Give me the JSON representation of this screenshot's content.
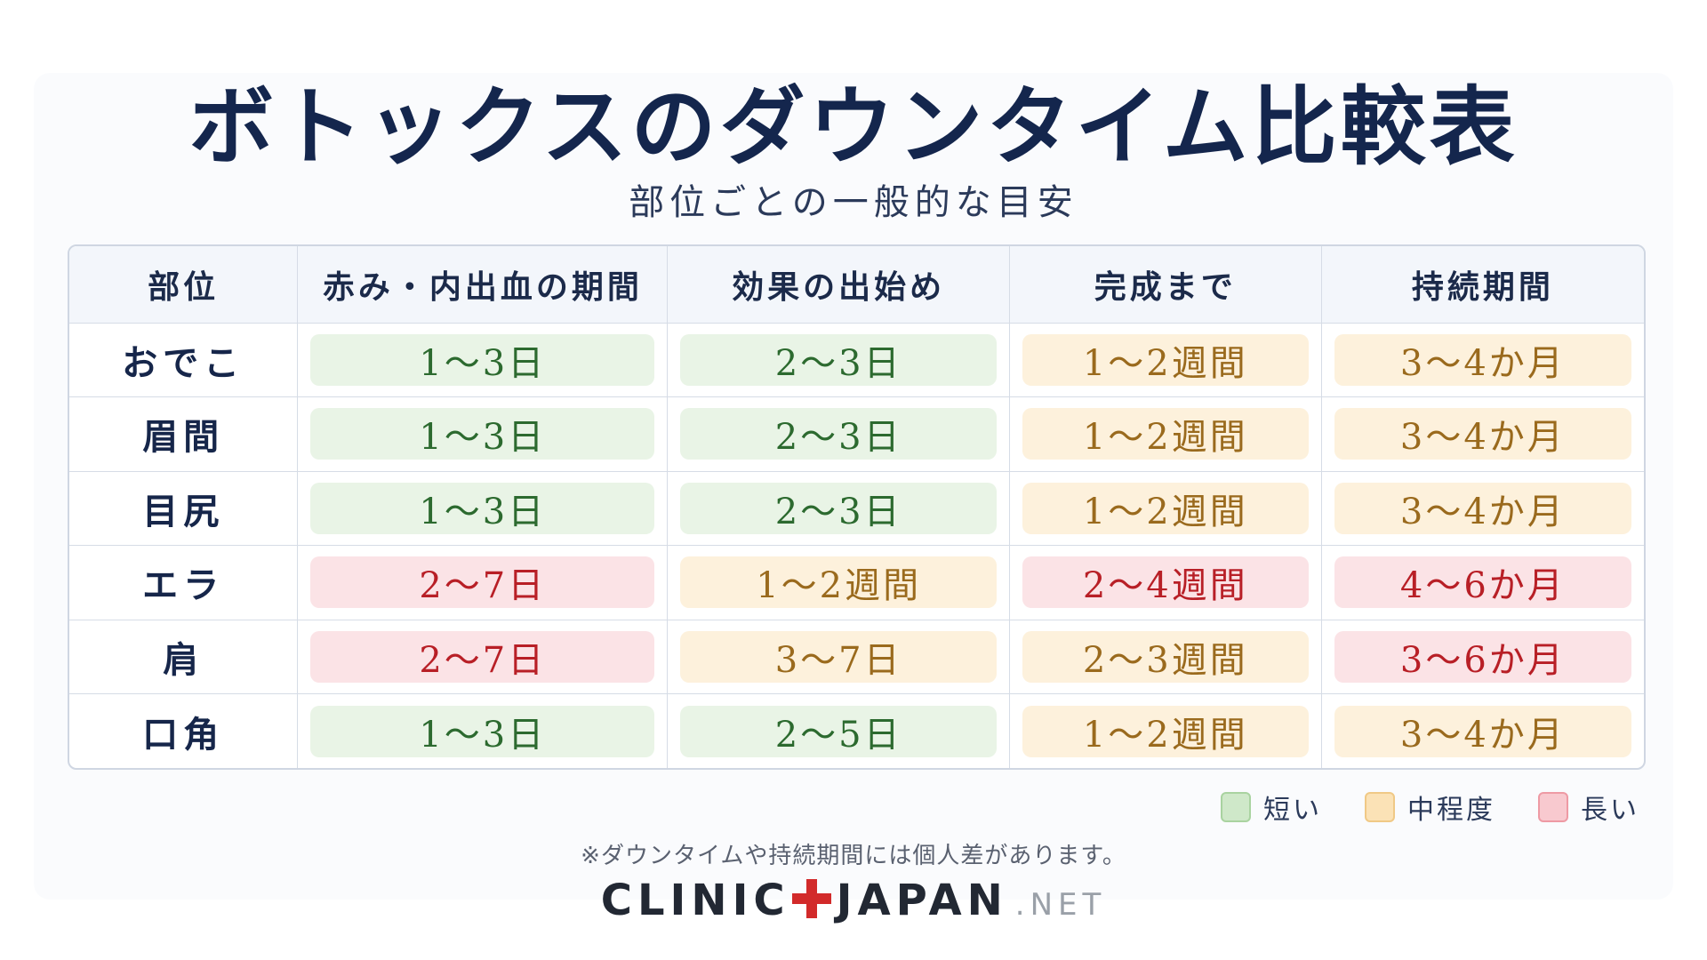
{
  "title": "ボトックスのダウンタイム比較表",
  "subtitle": "部位ごとの一般的な目安",
  "table": {
    "headers": [
      "部位",
      "赤み・内出血の期間",
      "効果の出始め",
      "完成まで",
      "持続期間"
    ],
    "rows": [
      {
        "part": "おでこ",
        "cells": [
          {
            "text": "1〜3日",
            "level": "short"
          },
          {
            "text": "2〜3日",
            "level": "short"
          },
          {
            "text": "1〜2週間",
            "level": "mid"
          },
          {
            "text": "3〜4か月",
            "level": "mid"
          }
        ]
      },
      {
        "part": "眉間",
        "cells": [
          {
            "text": "1〜3日",
            "level": "short"
          },
          {
            "text": "2〜3日",
            "level": "short"
          },
          {
            "text": "1〜2週間",
            "level": "mid"
          },
          {
            "text": "3〜4か月",
            "level": "mid"
          }
        ]
      },
      {
        "part": "目尻",
        "cells": [
          {
            "text": "1〜3日",
            "level": "short"
          },
          {
            "text": "2〜3日",
            "level": "short"
          },
          {
            "text": "1〜2週間",
            "level": "mid"
          },
          {
            "text": "3〜4か月",
            "level": "mid"
          }
        ]
      },
      {
        "part": "エラ",
        "cells": [
          {
            "text": "2〜7日",
            "level": "long"
          },
          {
            "text": "1〜2週間",
            "level": "mid"
          },
          {
            "text": "2〜4週間",
            "level": "long"
          },
          {
            "text": "4〜6か月",
            "level": "long"
          }
        ]
      },
      {
        "part": "肩",
        "cells": [
          {
            "text": "2〜7日",
            "level": "long"
          },
          {
            "text": "3〜7日",
            "level": "mid"
          },
          {
            "text": "2〜3週間",
            "level": "mid"
          },
          {
            "text": "3〜6か月",
            "level": "long"
          }
        ]
      },
      {
        "part": "口角",
        "cells": [
          {
            "text": "1〜3日",
            "level": "short"
          },
          {
            "text": "2〜5日",
            "level": "short"
          },
          {
            "text": "1〜2週間",
            "level": "mid"
          },
          {
            "text": "3〜4か月",
            "level": "mid"
          }
        ]
      }
    ]
  },
  "legend": {
    "short": "短い",
    "mid": "中程度",
    "long": "長い"
  },
  "colors": {
    "short_bg": "#e9f4e6",
    "short_text": "#2c6a2f",
    "mid_bg": "#fdf1dc",
    "mid_text": "#9a6a1d",
    "long_bg": "#fbe3e6",
    "long_text": "#b81f26",
    "title": "#14264d",
    "logo_plus": "#d22a2a"
  },
  "note": "※ダウンタイムや持続期間には個人差があります。",
  "logo": {
    "left": "CLINIC",
    "right": "JAPAN",
    "tld": ".NET"
  }
}
